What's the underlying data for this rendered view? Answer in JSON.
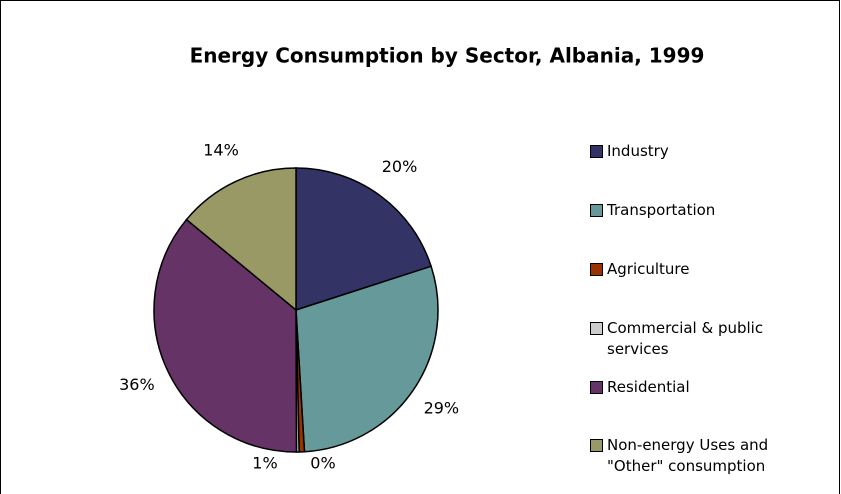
{
  "chart_data": {
    "type": "pie",
    "title": "Energy Consumption by Sector, Albania, 1999",
    "categories": [
      "Industry",
      "Transportation",
      "Agriculture",
      "Commercial & public services",
      "Residential",
      "Non-energy Uses and \"Other\" consumption"
    ],
    "values": [
      20,
      29,
      0.6,
      0.3,
      36,
      14
    ],
    "value_labels": [
      "20%",
      "29%",
      "1%",
      "0%",
      "36%",
      "14%"
    ],
    "colors": [
      "#333366",
      "#669999",
      "#993300",
      "#cccccc",
      "#663366",
      "#999966"
    ],
    "legend": "right"
  }
}
